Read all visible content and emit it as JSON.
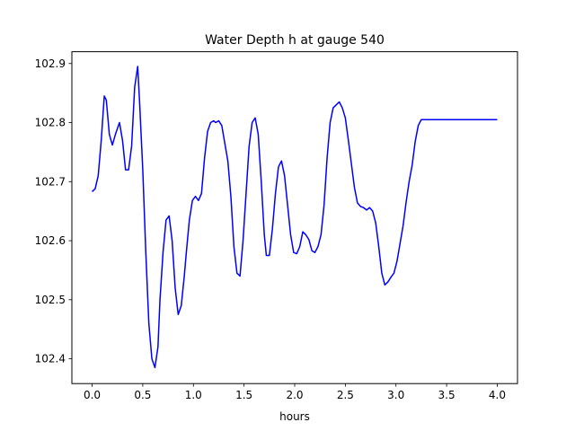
{
  "chart_data": {
    "type": "line",
    "title": "Water Depth h at gauge 540",
    "xlabel": "hours",
    "ylabel": "",
    "xlim": [
      -0.2,
      4.2
    ],
    "ylim": [
      102.358,
      102.92
    ],
    "grid": false,
    "xticks": [
      0.0,
      0.5,
      1.0,
      1.5,
      2.0,
      2.5,
      3.0,
      3.5,
      4.0
    ],
    "xtick_labels": [
      "0.0",
      "0.5",
      "1.0",
      "1.5",
      "2.0",
      "2.5",
      "3.0",
      "3.5",
      "4.0"
    ],
    "yticks": [
      102.4,
      102.5,
      102.6,
      102.7,
      102.8,
      102.9
    ],
    "ytick_labels": [
      "102.4",
      "102.5",
      "102.6",
      "102.7",
      "102.8",
      "102.9"
    ],
    "series": [
      {
        "color": "#0000ff",
        "x": [
          0.0,
          0.03,
          0.06,
          0.09,
          0.12,
          0.14,
          0.17,
          0.2,
          0.23,
          0.27,
          0.3,
          0.33,
          0.36,
          0.39,
          0.42,
          0.45,
          0.47,
          0.5,
          0.53,
          0.56,
          0.59,
          0.62,
          0.65,
          0.67,
          0.7,
          0.73,
          0.76,
          0.79,
          0.82,
          0.85,
          0.88,
          0.91,
          0.93,
          0.96,
          0.99,
          1.02,
          1.05,
          1.08,
          1.11,
          1.14,
          1.17,
          1.2,
          1.22,
          1.25,
          1.28,
          1.31,
          1.34,
          1.37,
          1.4,
          1.43,
          1.46,
          1.49,
          1.52,
          1.55,
          1.58,
          1.61,
          1.64,
          1.67,
          1.7,
          1.72,
          1.75,
          1.78,
          1.81,
          1.84,
          1.87,
          1.9,
          1.93,
          1.96,
          1.99,
          2.02,
          2.05,
          2.08,
          2.11,
          2.14,
          2.17,
          2.2,
          2.23,
          2.26,
          2.29,
          2.32,
          2.35,
          2.38,
          2.41,
          2.44,
          2.47,
          2.5,
          2.53,
          2.56,
          2.59,
          2.62,
          2.65,
          2.68,
          2.71,
          2.74,
          2.77,
          2.8,
          2.83,
          2.86,
          2.89,
          2.92,
          2.95,
          2.98,
          3.01,
          3.04,
          3.07,
          3.1,
          3.13,
          3.16,
          3.19,
          3.22,
          3.25,
          3.28,
          3.31,
          3.34,
          3.37,
          3.4,
          3.43,
          3.46,
          3.49,
          3.52,
          3.55,
          3.58,
          3.61,
          3.64,
          3.67,
          3.7,
          3.73,
          3.76,
          3.79,
          3.82,
          3.85,
          3.88,
          3.91,
          3.94,
          3.97,
          4.0
        ],
        "y": [
          102.683,
          102.688,
          102.71,
          102.77,
          102.845,
          102.838,
          102.78,
          102.762,
          102.78,
          102.8,
          102.77,
          102.72,
          102.72,
          102.76,
          102.86,
          102.895,
          102.83,
          102.72,
          102.58,
          102.46,
          102.4,
          102.385,
          102.42,
          102.5,
          102.58,
          102.635,
          102.642,
          102.6,
          102.52,
          102.475,
          102.49,
          102.54,
          102.58,
          102.635,
          102.668,
          102.675,
          102.668,
          102.68,
          102.74,
          102.785,
          102.8,
          102.803,
          102.8,
          102.803,
          102.795,
          102.765,
          102.735,
          102.675,
          102.59,
          102.545,
          102.54,
          102.6,
          102.68,
          102.76,
          102.8,
          102.808,
          102.78,
          102.7,
          102.61,
          102.575,
          102.575,
          102.62,
          102.68,
          102.725,
          102.735,
          102.71,
          102.66,
          102.61,
          102.58,
          102.578,
          102.59,
          102.615,
          102.61,
          102.602,
          102.583,
          102.58,
          102.59,
          102.61,
          102.66,
          102.74,
          102.8,
          102.825,
          102.83,
          102.835,
          102.825,
          102.808,
          102.77,
          102.73,
          102.69,
          102.664,
          102.658,
          102.656,
          102.652,
          102.656,
          102.65,
          102.63,
          102.59,
          102.545,
          102.525,
          102.53,
          102.538,
          102.545,
          102.565,
          102.595,
          102.625,
          102.665,
          102.7,
          102.728,
          102.768,
          102.795,
          102.805,
          102.805,
          102.805,
          102.805,
          102.805,
          102.805,
          102.805,
          102.805,
          102.805,
          102.805,
          102.805,
          102.805,
          102.805,
          102.805,
          102.805,
          102.805,
          102.805,
          102.805,
          102.805,
          102.805,
          102.805,
          102.805,
          102.805,
          102.805,
          102.805,
          102.805
        ]
      }
    ]
  }
}
